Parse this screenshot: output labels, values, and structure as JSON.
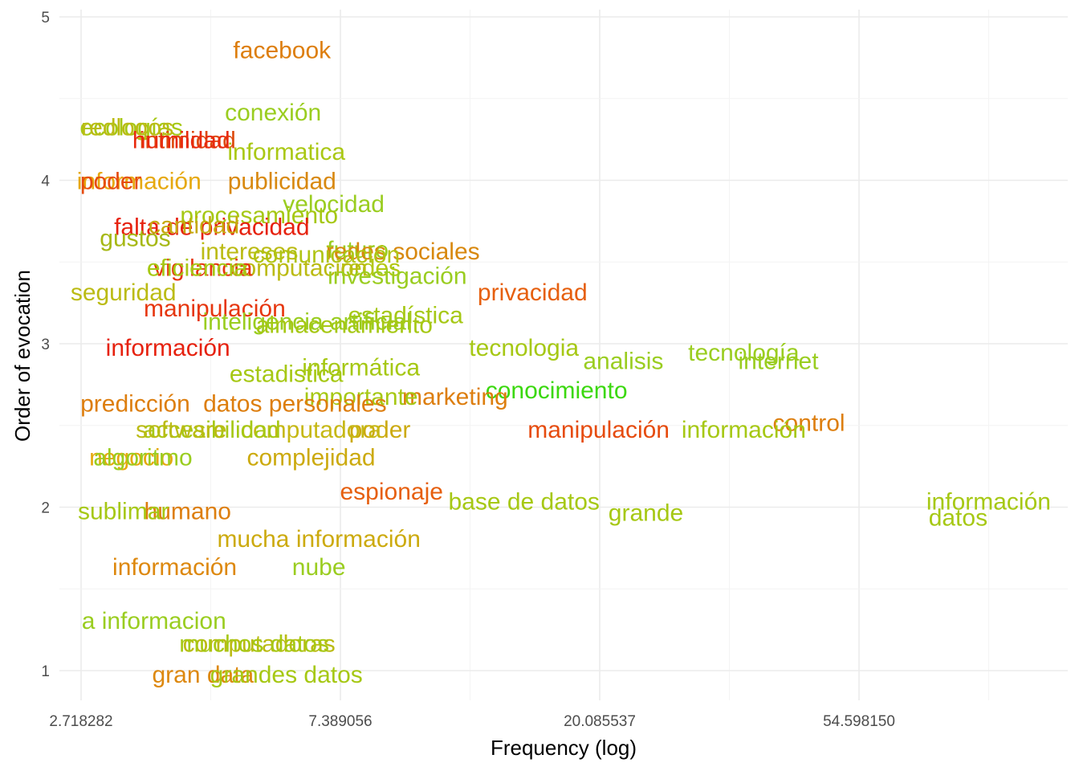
{
  "chart_data": {
    "type": "scatter",
    "title": "",
    "xlabel": "Frequency (log)",
    "ylabel": "Order of evocation",
    "x_scale": "log",
    "x_tick_labels": [
      "2.718282",
      "7.389056",
      "20.085537",
      "54.598150"
    ],
    "y_tick_labels": [
      "1",
      "2",
      "3",
      "4",
      "5"
    ],
    "xlim": [
      2.5,
      100
    ],
    "ylim": [
      0.83,
      5.0
    ],
    "grid": true,
    "legend": "none",
    "points": [
      {
        "label": "facebook",
        "x": 5.9,
        "y": 4.8,
        "color": "#dd7e0e"
      },
      {
        "label": "conexión",
        "x": 5.7,
        "y": 4.42,
        "color": "#9acd20"
      },
      {
        "label": "ecologías",
        "x": 3.3,
        "y": 4.33,
        "color": "#a6c814"
      },
      {
        "label": "redlogos",
        "x": 3.25,
        "y": 4.33,
        "color": "#bbbb14"
      },
      {
        "label": "intimidad",
        "x": 4.1,
        "y": 4.25,
        "color": "#dd4a0e"
      },
      {
        "label": "humildad",
        "x": 4.0,
        "y": 4.25,
        "color": "#e82a0e"
      },
      {
        "label": "informatica",
        "x": 6.0,
        "y": 4.18,
        "color": "#aac814"
      },
      {
        "label": "publicidad",
        "x": 5.9,
        "y": 4.0,
        "color": "#d8880e"
      },
      {
        "label": "información",
        "x": 3.4,
        "y": 4.0,
        "color": "#e6a80e"
      },
      {
        "label": "poder",
        "x": 3.05,
        "y": 4.0,
        "color": "#e64b0e"
      },
      {
        "label": "velocidad",
        "x": 7.2,
        "y": 3.86,
        "color": "#9acd20"
      },
      {
        "label": "procesamiento",
        "x": 5.4,
        "y": 3.79,
        "color": "#a6c814"
      },
      {
        "label": "falta de privacidad",
        "x": 4.5,
        "y": 3.72,
        "color": "#e6210e"
      },
      {
        "label": "cantidad",
        "x": 4.2,
        "y": 3.73,
        "color": "#c6a80e"
      },
      {
        "label": "gustos",
        "x": 3.35,
        "y": 3.65,
        "color": "#a6b814"
      },
      {
        "label": "futuro",
        "x": 7.9,
        "y": 3.58,
        "color": "#9acd20"
      },
      {
        "label": "redes sociales",
        "x": 9.4,
        "y": 3.57,
        "color": "#d8880e"
      },
      {
        "label": "intereses",
        "x": 5.2,
        "y": 3.57,
        "color": "#bbbb14"
      },
      {
        "label": "comunicación",
        "x": 7.0,
        "y": 3.55,
        "color": "#b0c414"
      },
      {
        "label": "redes",
        "x": 8.3,
        "y": 3.47,
        "color": "#b4c814"
      },
      {
        "label": "computación",
        "x": 6.3,
        "y": 3.47,
        "color": "#bbbb14"
      },
      {
        "label": "vigilancia",
        "x": 4.35,
        "y": 3.47,
        "color": "#e6360e"
      },
      {
        "label": "eficiencia",
        "x": 4.25,
        "y": 3.47,
        "color": "#a6c814"
      },
      {
        "label": "investigación",
        "x": 9.2,
        "y": 3.42,
        "color": "#9acd20"
      },
      {
        "label": "privacidad",
        "x": 15.5,
        "y": 3.32,
        "color": "#e65f0e"
      },
      {
        "label": "seguridad",
        "x": 3.2,
        "y": 3.32,
        "color": "#bbbb14"
      },
      {
        "label": "manipulación",
        "x": 4.55,
        "y": 3.22,
        "color": "#e6360e"
      },
      {
        "label": "estadística",
        "x": 9.5,
        "y": 3.18,
        "color": "#a6c814"
      },
      {
        "label": "inteligencia artificial",
        "x": 6.5,
        "y": 3.14,
        "color": "#9acd20"
      },
      {
        "label": "almacenamiento",
        "x": 7.5,
        "y": 3.12,
        "color": "#a6c814"
      },
      {
        "label": "información",
        "x": 3.8,
        "y": 2.98,
        "color": "#e6210e"
      },
      {
        "label": "tecnologia",
        "x": 15.0,
        "y": 2.98,
        "color": "#a6c814"
      },
      {
        "label": "tecnología",
        "x": 35.0,
        "y": 2.95,
        "color": "#9acd20"
      },
      {
        "label": "analisis",
        "x": 22.0,
        "y": 2.9,
        "color": "#9acd20"
      },
      {
        "label": "internet",
        "x": 40.0,
        "y": 2.9,
        "color": "#9acd20"
      },
      {
        "label": "informática",
        "x": 8.0,
        "y": 2.86,
        "color": "#a6c814"
      },
      {
        "label": "estadistica",
        "x": 6.0,
        "y": 2.82,
        "color": "#a6c814"
      },
      {
        "label": "conocimiento",
        "x": 17.0,
        "y": 2.72,
        "color": "#3bd80e"
      },
      {
        "label": "marketing",
        "x": 11.5,
        "y": 2.68,
        "color": "#dd7e0e"
      },
      {
        "label": "importante",
        "x": 8.0,
        "y": 2.68,
        "color": "#a6c814"
      },
      {
        "label": "datos personales",
        "x": 6.2,
        "y": 2.64,
        "color": "#dd7e0e"
      },
      {
        "label": "predicción",
        "x": 3.35,
        "y": 2.64,
        "color": "#dd7e0e"
      },
      {
        "label": "control",
        "x": 45.0,
        "y": 2.52,
        "color": "#dd7e0e"
      },
      {
        "label": "información",
        "x": 35.0,
        "y": 2.48,
        "color": "#a6c814"
      },
      {
        "label": "manipulación",
        "x": 20.0,
        "y": 2.48,
        "color": "#e64b0e"
      },
      {
        "label": "poder",
        "x": 8.6,
        "y": 2.48,
        "color": "#ccaa0e"
      },
      {
        "label": "computadora",
        "x": 6.6,
        "y": 2.48,
        "color": "#c6b814"
      },
      {
        "label": "accesibilidad",
        "x": 4.5,
        "y": 2.48,
        "color": "#a6c814"
      },
      {
        "label": "software",
        "x": 4.0,
        "y": 2.48,
        "color": "#bbbb14"
      },
      {
        "label": "complejidad",
        "x": 6.6,
        "y": 2.31,
        "color": "#ccaa0e"
      },
      {
        "label": "negocio",
        "x": 3.3,
        "y": 2.31,
        "color": "#e6a80e"
      },
      {
        "label": "algoritmo",
        "x": 3.45,
        "y": 2.31,
        "color": "#9acd20"
      },
      {
        "label": "espionaje",
        "x": 9.0,
        "y": 2.1,
        "color": "#e65f0e"
      },
      {
        "label": "base de datos",
        "x": 15.0,
        "y": 2.04,
        "color": "#a6c814"
      },
      {
        "label": "información",
        "x": 90.0,
        "y": 2.04,
        "color": "#a6c814"
      },
      {
        "label": "grande",
        "x": 24.0,
        "y": 1.97,
        "color": "#a6c814"
      },
      {
        "label": "datos",
        "x": 80.0,
        "y": 1.94,
        "color": "#a6c814"
      },
      {
        "label": "humano",
        "x": 4.1,
        "y": 1.98,
        "color": "#dd7e0e"
      },
      {
        "label": "sublimar",
        "x": 3.2,
        "y": 1.98,
        "color": "#a6c814"
      },
      {
        "label": "mucha información",
        "x": 6.8,
        "y": 1.81,
        "color": "#ccaa0e"
      },
      {
        "label": "información",
        "x": 3.9,
        "y": 1.64,
        "color": "#dd880e"
      },
      {
        "label": "nube",
        "x": 6.8,
        "y": 1.64,
        "color": "#9acd20"
      },
      {
        "label": "a informacion",
        "x": 3.6,
        "y": 1.31,
        "color": "#9acd20"
      },
      {
        "label": "computadoras",
        "x": 5.4,
        "y": 1.17,
        "color": "#bbbb14"
      },
      {
        "label": "muchos datos",
        "x": 5.3,
        "y": 1.17,
        "color": "#a6c814"
      },
      {
        "label": "gran data",
        "x": 4.35,
        "y": 0.98,
        "color": "#dd880e"
      },
      {
        "label": "grandes datos",
        "x": 6.0,
        "y": 0.98,
        "color": "#a6c814"
      }
    ]
  }
}
